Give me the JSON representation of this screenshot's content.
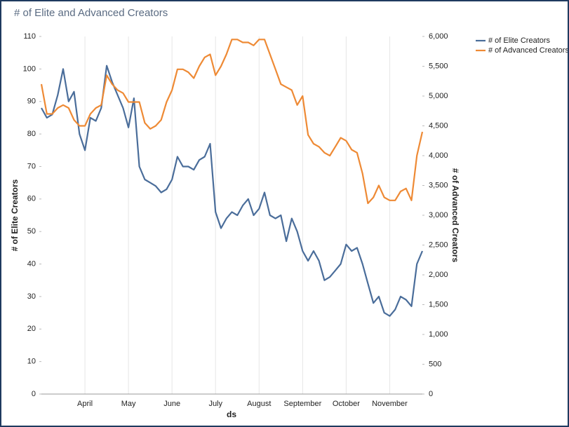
{
  "chart_data": {
    "type": "line",
    "title": "# of Elite and Advanced Creators",
    "x_label": "ds",
    "y_label": "# of Elite Creators",
    "y2_label": "# of Advanced Creators",
    "categories": [
      null,
      null,
      null,
      null,
      null,
      null,
      null,
      null,
      "April",
      null,
      null,
      null,
      null,
      null,
      null,
      null,
      "May",
      null,
      null,
      null,
      null,
      null,
      null,
      null,
      "June",
      null,
      null,
      null,
      null,
      null,
      null,
      null,
      "July",
      null,
      null,
      null,
      null,
      null,
      null,
      null,
      "August",
      null,
      null,
      null,
      null,
      null,
      null,
      null,
      "September",
      null,
      null,
      null,
      null,
      null,
      null,
      null,
      "October",
      null,
      null,
      null,
      null,
      null,
      null,
      null,
      "November",
      null,
      null,
      null,
      null,
      null,
      null
    ],
    "series": [
      {
        "name": "# of Elite Creators",
        "color": "#4a6d9a",
        "axis": "y",
        "values": [
          88,
          85,
          86,
          92,
          100,
          90,
          93,
          80,
          75,
          85,
          84,
          88,
          101,
          96,
          92,
          88,
          82,
          91,
          70,
          66,
          65,
          64,
          62,
          63,
          66,
          73,
          70,
          70,
          69,
          72,
          73,
          77,
          56,
          51,
          54,
          56,
          55,
          58,
          60,
          55,
          57,
          62,
          55,
          54,
          55,
          47,
          54,
          50,
          44,
          41,
          44,
          41,
          35,
          36,
          38,
          40,
          46,
          44,
          45,
          40,
          34,
          28,
          30,
          25,
          24,
          26,
          30,
          29,
          27,
          40,
          44
        ]
      },
      {
        "name": "# of Advanced Creators",
        "color": "#ee8a35",
        "axis": "y2",
        "values": [
          5200,
          4700,
          4700,
          4800,
          4850,
          4800,
          4600,
          4500,
          4500,
          4700,
          4800,
          4850,
          5350,
          5200,
          5100,
          5050,
          4900,
          4900,
          4900,
          4550,
          4450,
          4500,
          4600,
          4900,
          5100,
          5450,
          5450,
          5400,
          5300,
          5500,
          5650,
          5700,
          5350,
          5500,
          5700,
          5950,
          5950,
          5900,
          5900,
          5850,
          5950,
          5950,
          5700,
          5450,
          5200,
          5150,
          5100,
          4850,
          5000,
          4350,
          4200,
          4150,
          4050,
          4000,
          4150,
          4300,
          4250,
          4100,
          4050,
          3700,
          3200,
          3300,
          3500,
          3300,
          3250,
          3250,
          3400,
          3450,
          3250,
          4000,
          4400
        ]
      }
    ],
    "ylim": [
      0,
      110
    ],
    "yticks": [
      0,
      10,
      20,
      30,
      40,
      50,
      60,
      70,
      80,
      90,
      100,
      110
    ],
    "y2lim": [
      0,
      6000
    ],
    "y2ticks": [
      0,
      500,
      {
        "value": 1000,
        "label": "1,000"
      },
      {
        "value": 1500,
        "label": "1,500"
      },
      {
        "value": 2000,
        "label": "2,000"
      },
      {
        "value": 2500,
        "label": "2,500"
      },
      {
        "value": 3000,
        "label": "3,000"
      },
      {
        "value": 3500,
        "label": "3,500"
      },
      {
        "value": 4000,
        "label": "4,000"
      },
      {
        "value": 4500,
        "label": "4,500"
      },
      {
        "value": 5000,
        "label": "5,000"
      },
      {
        "value": 5500,
        "label": "5,500"
      },
      {
        "value": 6000,
        "label": "6,000"
      }
    ],
    "grid": "x",
    "legend": "top-right"
  }
}
